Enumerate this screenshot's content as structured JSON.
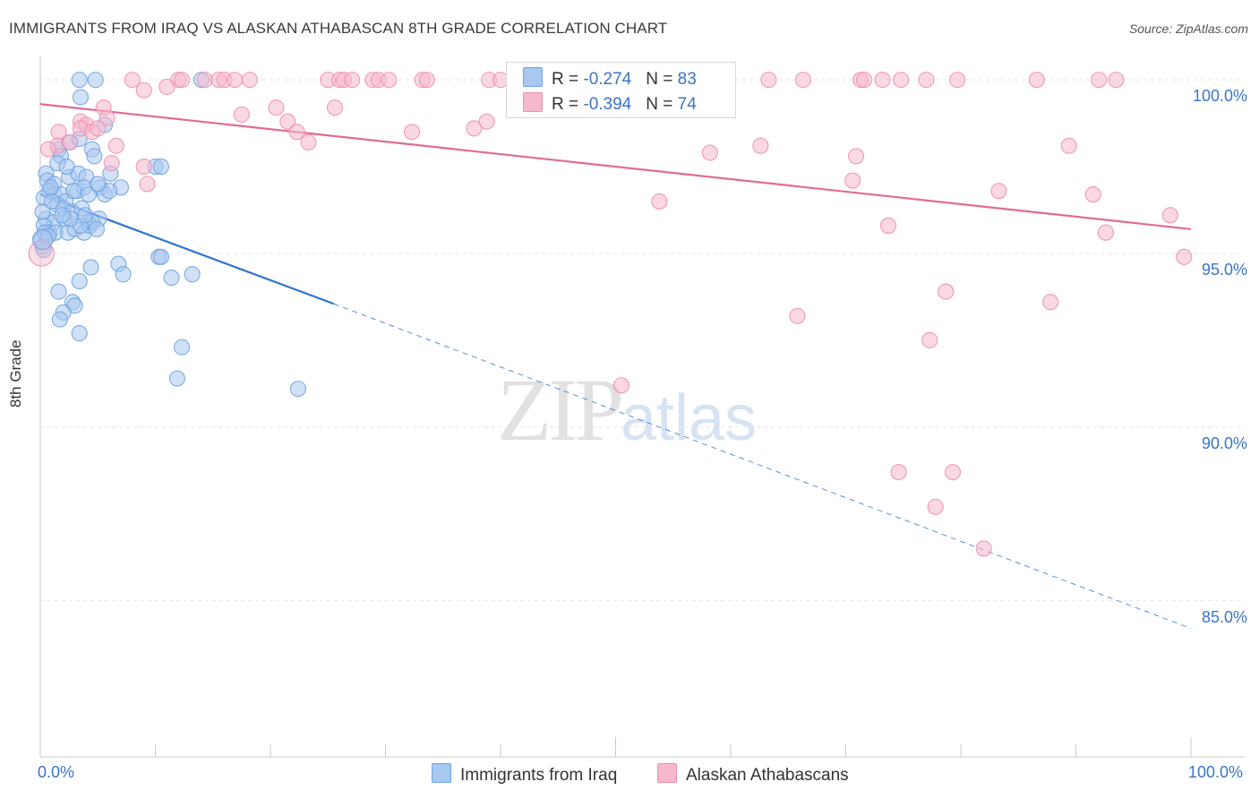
{
  "header": {
    "title": "IMMIGRANTS FROM IRAQ VS ALASKAN ATHABASCAN 8TH GRADE CORRELATION CHART",
    "source": "Source: ZipAtlas.com"
  },
  "watermark": {
    "zip": "ZIP",
    "atlas": "atlas"
  },
  "legend": {
    "rows": [
      {
        "r_label": "R = ",
        "r_value": "-0.274",
        "n_label": "N = ",
        "n_value": "83",
        "color": "#a9c8ef"
      },
      {
        "r_label": "R = ",
        "r_value": "-0.394",
        "n_label": "N = ",
        "n_value": "74",
        "color": "#f5b8cc"
      }
    ]
  },
  "chart_data": {
    "type": "scatter",
    "title": "IMMIGRANTS FROM IRAQ VS ALASKAN ATHABASCAN 8TH GRADE CORRELATION CHART",
    "xlabel": "",
    "ylabel": "8th Grade",
    "xlim": [
      0,
      100
    ],
    "ylim": [
      80.5,
      100.7
    ],
    "x_tick_labels": [
      "0.0%",
      "100.0%"
    ],
    "y_ticks": [
      {
        "value": 100,
        "label": "100.0%"
      },
      {
        "value": 95,
        "label": "95.0%"
      },
      {
        "value": 90,
        "label": "90.0%"
      },
      {
        "value": 85,
        "label": "85.0%"
      }
    ],
    "grid": true,
    "legend_position": "top-center",
    "series": [
      {
        "name": "Immigrants from Iraq",
        "color": "#6fa3e3",
        "fill": "#a9c8ef",
        "line_color": "#2f74d0",
        "trend": {
          "x0": 0,
          "y0": 96.7,
          "x_solid_end": 25.5,
          "y_solid_end": 93.55,
          "x1": 100,
          "y1": 84.2
        },
        "points": [
          [
            3.4,
            100
          ],
          [
            4.8,
            100
          ],
          [
            14,
            100
          ],
          [
            3.5,
            99.5
          ],
          [
            5.6,
            98.7
          ],
          [
            1.6,
            98.0
          ],
          [
            2.5,
            98.2
          ],
          [
            4.5,
            98.0
          ],
          [
            3.4,
            98.3
          ],
          [
            1.8,
            97.8
          ],
          [
            4.7,
            97.8
          ],
          [
            10,
            97.5
          ],
          [
            10.5,
            97.5
          ],
          [
            0.5,
            97.3
          ],
          [
            0.6,
            97.1
          ],
          [
            1.2,
            97.0
          ],
          [
            2.5,
            97.2
          ],
          [
            3.3,
            97.3
          ],
          [
            4.0,
            97.2
          ],
          [
            5.2,
            96.9
          ],
          [
            7,
            96.9
          ],
          [
            0.8,
            96.8
          ],
          [
            1.2,
            96.7
          ],
          [
            1.8,
            96.7
          ],
          [
            2.2,
            96.5
          ],
          [
            3.2,
            96.8
          ],
          [
            3.8,
            96.9
          ],
          [
            4.2,
            96.7
          ],
          [
            5.6,
            96.7
          ],
          [
            6,
            96.8
          ],
          [
            0.3,
            96.6
          ],
          [
            1.5,
            96.4
          ],
          [
            2.0,
            96.3
          ],
          [
            2.8,
            96.2
          ],
          [
            3.6,
            96.3
          ],
          [
            0.5,
            96.0
          ],
          [
            1.2,
            95.9
          ],
          [
            2.1,
            96.0
          ],
          [
            4.2,
            95.9
          ],
          [
            5.1,
            96.0
          ],
          [
            0.3,
            95.8
          ],
          [
            0.8,
            95.6
          ],
          [
            1.3,
            95.6
          ],
          [
            2.4,
            95.6
          ],
          [
            3.0,
            95.7
          ],
          [
            3.8,
            95.6
          ],
          [
            4.3,
            95.8
          ],
          [
            4.5,
            95.9
          ],
          [
            0.1,
            95.4
          ],
          [
            0.2,
            95.2
          ],
          [
            0.3,
            95.1
          ],
          [
            0.4,
            95.6
          ],
          [
            3.5,
            95.8
          ],
          [
            10.3,
            94.9
          ],
          [
            10.5,
            94.9
          ],
          [
            6.8,
            94.7
          ],
          [
            4.4,
            94.6
          ],
          [
            7.2,
            94.4
          ],
          [
            11.4,
            94.3
          ],
          [
            13.2,
            94.4
          ],
          [
            3.4,
            94.2
          ],
          [
            1.6,
            93.9
          ],
          [
            2.8,
            93.6
          ],
          [
            3.0,
            93.5
          ],
          [
            2.0,
            93.3
          ],
          [
            1.7,
            93.1
          ],
          [
            3.4,
            92.7
          ],
          [
            12.3,
            92.3
          ],
          [
            11.9,
            91.4
          ],
          [
            22.4,
            91.1
          ],
          [
            0.2,
            96.2
          ],
          [
            1.0,
            96.5
          ],
          [
            2.6,
            96.0
          ],
          [
            0.7,
            95.5
          ],
          [
            5.0,
            97.0
          ],
          [
            6.1,
            97.3
          ],
          [
            1.5,
            97.6
          ],
          [
            2.9,
            96.8
          ],
          [
            3.9,
            96.1
          ],
          [
            4.9,
            95.7
          ],
          [
            0.9,
            96.9
          ],
          [
            2.3,
            97.5
          ],
          [
            1.9,
            96.1
          ]
        ]
      },
      {
        "name": "Alaskan Athabascans",
        "color": "#ee8fb0",
        "fill": "#f5b8cc",
        "line_color": "#e06b97",
        "trend": {
          "x0": 0,
          "y0": 99.3,
          "x1": 100,
          "y1": 95.7
        },
        "points": [
          [
            8,
            100
          ],
          [
            12,
            100
          ],
          [
            12.3,
            100
          ],
          [
            14.3,
            100
          ],
          [
            15.5,
            100
          ],
          [
            16,
            100
          ],
          [
            16.9,
            100
          ],
          [
            18.2,
            100
          ],
          [
            25,
            100
          ],
          [
            26,
            100
          ],
          [
            26.4,
            100
          ],
          [
            27.1,
            100
          ],
          [
            28.9,
            100
          ],
          [
            29.4,
            100
          ],
          [
            30.3,
            100
          ],
          [
            33.2,
            100
          ],
          [
            33.6,
            100
          ],
          [
            39,
            100
          ],
          [
            40,
            100
          ],
          [
            52.8,
            100
          ],
          [
            63.3,
            100
          ],
          [
            66.3,
            100
          ],
          [
            71.3,
            100
          ],
          [
            71.6,
            100
          ],
          [
            73.2,
            100
          ],
          [
            74.8,
            100
          ],
          [
            77,
            100
          ],
          [
            79.7,
            100
          ],
          [
            86.6,
            100
          ],
          [
            92,
            100
          ],
          [
            93.5,
            100
          ],
          [
            9,
            99.7
          ],
          [
            11,
            99.8
          ],
          [
            5.5,
            99.2
          ],
          [
            17.5,
            99.0
          ],
          [
            20.5,
            99.2
          ],
          [
            25.6,
            99.2
          ],
          [
            5.8,
            98.9
          ],
          [
            3.5,
            98.8
          ],
          [
            4,
            98.7
          ],
          [
            21.5,
            98.8
          ],
          [
            1.6,
            98.5
          ],
          [
            3.5,
            98.6
          ],
          [
            4.5,
            98.5
          ],
          [
            5,
            98.6
          ],
          [
            22.3,
            98.5
          ],
          [
            32.3,
            98.5
          ],
          [
            37.7,
            98.6
          ],
          [
            38.8,
            98.8
          ],
          [
            1.5,
            98.1
          ],
          [
            2.6,
            98.2
          ],
          [
            6.6,
            98.1
          ],
          [
            23.3,
            98.2
          ],
          [
            62.6,
            98.1
          ],
          [
            89.4,
            98.1
          ],
          [
            0.7,
            98.0
          ],
          [
            58.2,
            97.9
          ],
          [
            70.9,
            97.8
          ],
          [
            6.2,
            97.6
          ],
          [
            9,
            97.5
          ],
          [
            9.3,
            97.0
          ],
          [
            70.6,
            97.1
          ],
          [
            83.3,
            96.8
          ],
          [
            91.5,
            96.7
          ],
          [
            53.8,
            96.5
          ],
          [
            98.2,
            96.1
          ],
          [
            73.7,
            95.8
          ],
          [
            92.6,
            95.6
          ],
          [
            99.4,
            94.9
          ],
          [
            78.7,
            93.9
          ],
          [
            87.8,
            93.6
          ],
          [
            65.8,
            93.2
          ],
          [
            77.3,
            92.5
          ],
          [
            50.5,
            91.2
          ]
        ],
        "extra_points": [
          [
            74.6,
            88.7
          ],
          [
            79.3,
            88.7
          ],
          [
            77.8,
            87.7
          ],
          [
            82,
            86.5
          ]
        ]
      }
    ]
  }
}
